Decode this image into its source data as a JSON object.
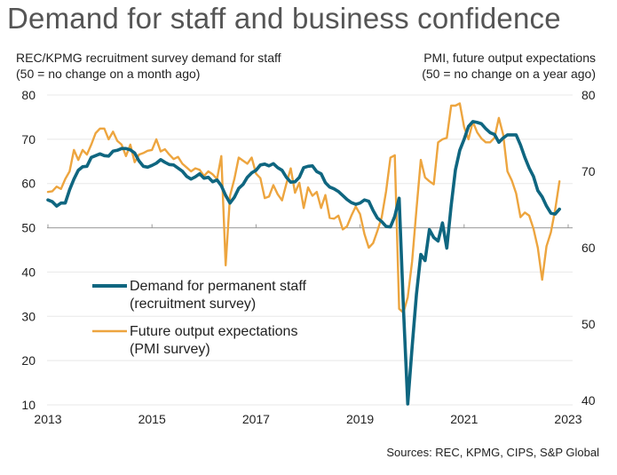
{
  "title": "Demand for staff and business confidence",
  "left_axis_desc": [
    "REC/KPMG recruitment survey demand for staff",
    "(50 = no change on a month ago)"
  ],
  "right_axis_desc": [
    "PMI, future output expectations",
    "(50 = no change on a year ago)"
  ],
  "source": "Sources: REC, KPMG, CIPS, S&P Global",
  "colors": {
    "demand": "#0f6680",
    "pmi": "#eda53f",
    "grid": "#e8e8e8",
    "baseline": "#999999"
  },
  "chart_data": {
    "type": "line",
    "title": "Demand for staff and business confidence",
    "xlabel": "",
    "ylabel_left": "REC/KPMG recruitment survey demand for staff (50 = no change on a month ago)",
    "ylabel_right": "PMI, future output expectations (50 = no change on a year ago)",
    "x_ticks": [
      "2013",
      "2015",
      "2017",
      "2019",
      "2021",
      "2023"
    ],
    "x_range": [
      2013,
      2023
    ],
    "y_left": {
      "ticks": [
        10,
        20,
        30,
        40,
        50,
        60,
        70,
        80
      ],
      "range": [
        10,
        80
      ]
    },
    "y_right": {
      "ticks": [
        40,
        50,
        60,
        70,
        80
      ],
      "range": [
        40,
        80
      ]
    },
    "grid": true,
    "legend": "middle-left",
    "series": [
      {
        "name": "Demand for permanent staff",
        "name_line2": "(recruitment survey)",
        "axis": "left",
        "start": 2013.0,
        "step_months": 1,
        "values": [
          56.3,
          55.9,
          54.9,
          55.6,
          55.6,
          58.6,
          61.0,
          63.0,
          63.8,
          63.9,
          65.9,
          66.3,
          66.7,
          66.3,
          66.2,
          67.3,
          67.5,
          67.9,
          67.9,
          67.6,
          66.9,
          65.1,
          63.9,
          63.7,
          64.1,
          64.6,
          65.4,
          64.8,
          64.3,
          64.2,
          63.5,
          62.8,
          61.6,
          61.0,
          61.5,
          62.2,
          61.2,
          61.4,
          60.4,
          60.8,
          59.5,
          57.3,
          55.6,
          56.9,
          58.9,
          59.8,
          61.4,
          62.4,
          63.0,
          64.2,
          64.4,
          64.0,
          64.5,
          63.6,
          63.0,
          61.4,
          60.3,
          60.4,
          61.4,
          63.6,
          63.9,
          64.0,
          62.7,
          62.2,
          60.2,
          59.2,
          58.8,
          58.2,
          57.3,
          56.4,
          55.7,
          55.3,
          55.6,
          56.3,
          56.0,
          53.9,
          52.2,
          51.4,
          50.3,
          50.2,
          52.6,
          56.7,
          32.0,
          10.2,
          23.0,
          35.0,
          44.0,
          42.6,
          49.6,
          47.8,
          47.0,
          51.1,
          45.4,
          55.0,
          63.1,
          67.5,
          70.0,
          72.9,
          74.0,
          73.8,
          73.5,
          72.4,
          71.5,
          71.1,
          69.3,
          70.3,
          71.0,
          71.0,
          71.0,
          68.7,
          65.9,
          63.5,
          61.6,
          58.4,
          57.0,
          54.9,
          53.3,
          53.1,
          54.2
        ]
      },
      {
        "name": "Future output expectations",
        "name_line2": "(PMI survey)",
        "axis": "right",
        "start": 2013.0,
        "step_months": 1,
        "values": [
          67.3,
          67.4,
          68.0,
          67.7,
          69.0,
          70.0,
          72.8,
          71.5,
          72.8,
          72.2,
          73.5,
          75.0,
          75.6,
          75.6,
          74.2,
          75.2,
          74.0,
          73.5,
          72.0,
          73.5,
          71.2,
          72.2,
          72.4,
          72.7,
          72.8,
          74.2,
          72.6,
          72.9,
          72.2,
          71.6,
          71.9,
          71.0,
          70.5,
          70.0,
          70.4,
          70.2,
          69.4,
          70.0,
          69.6,
          69.0,
          72.0,
          57.7,
          66.8,
          69.0,
          71.8,
          71.4,
          71.0,
          71.8,
          69.7,
          69.1,
          66.5,
          66.7,
          68.2,
          67.0,
          66.2,
          68.4,
          70.4,
          67.2,
          68.5,
          65.2,
          67.9,
          66.8,
          67.3,
          65.2,
          66.9,
          63.9,
          63.8,
          64.2,
          62.4,
          62.8,
          64.2,
          65.4,
          64.4,
          61.8,
          60.0,
          60.6,
          62.2,
          64.0,
          67.4,
          71.8,
          72.1,
          52.0,
          51.5,
          53.5,
          58.2,
          65.0,
          71.5,
          69.2,
          68.7,
          68.3,
          73.8,
          74.2,
          74.4,
          78.6,
          78.6,
          78.9,
          75.8,
          74.2,
          76.5,
          75.1,
          74.3,
          73.8,
          73.8,
          74.4,
          77.0,
          74.8,
          70.0,
          68.8,
          67.1,
          64.0,
          64.6,
          64.2,
          62.5,
          60.0,
          55.8,
          60.2,
          62.0,
          65.0,
          68.7
        ]
      }
    ]
  }
}
